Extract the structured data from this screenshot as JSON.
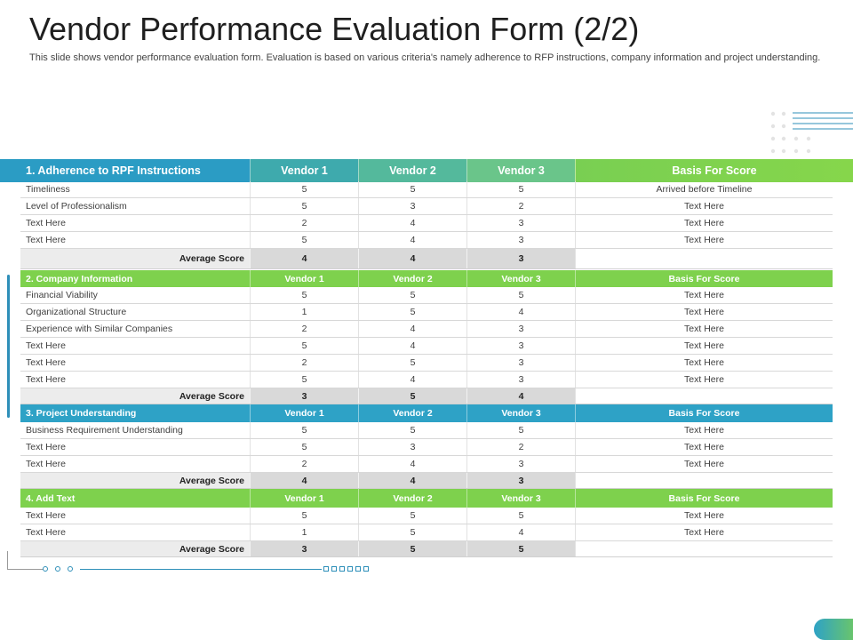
{
  "title": "Vendor Performance Evaluation Form (2/2)",
  "subtitle": "This slide shows vendor performance evaluation form. Evaluation is based on various criteria's namely adherence to RFP instructions, company information and project understanding.",
  "average_label": "Average Score",
  "colors": {
    "blue": "#2ea2c6",
    "green": "#7ed14d",
    "avg_gray": "#d9d9d9"
  },
  "sections": [
    {
      "header": [
        "1. Adherence to RPF Instructions",
        "Vendor 1",
        "Vendor 2",
        "Vendor 3",
        "Basis For Score"
      ],
      "header_color": "gradient",
      "rows": [
        [
          "Timeliness",
          "5",
          "5",
          "5",
          "Arrived before Timeline"
        ],
        [
          "Level of Professionalism",
          "5",
          "3",
          "2",
          "Text Here"
        ],
        [
          "Text Here",
          "2",
          "4",
          "3",
          "Text Here"
        ],
        [
          "Text Here",
          "5",
          "4",
          "3",
          "Text Here"
        ]
      ],
      "average": [
        "4",
        "4",
        "3"
      ]
    },
    {
      "header": [
        "2. Company Information",
        "Vendor 1",
        "Vendor 2",
        "Vendor 3",
        "Basis For Score"
      ],
      "header_color": "green",
      "rows": [
        [
          "Financial Viability",
          "5",
          "5",
          "5",
          "Text Here"
        ],
        [
          "Organizational Structure",
          "1",
          "5",
          "4",
          "Text Here"
        ],
        [
          "Experience with Similar Companies",
          "2",
          "4",
          "3",
          "Text Here"
        ],
        [
          "Text Here",
          "5",
          "4",
          "3",
          "Text Here"
        ],
        [
          "Text Here",
          "2",
          "5",
          "3",
          "Text Here"
        ],
        [
          "Text Here",
          "5",
          "4",
          "3",
          "Text Here"
        ]
      ],
      "average": [
        "3",
        "5",
        "4"
      ]
    },
    {
      "header": [
        "3. Project Understanding",
        "Vendor 1",
        "Vendor 2",
        "Vendor 3",
        "Basis For Score"
      ],
      "header_color": "blue",
      "rows": [
        [
          "Business Requirement Understanding",
          "5",
          "5",
          "5",
          "Text Here"
        ],
        [
          "Text Here",
          "5",
          "3",
          "2",
          "Text Here"
        ],
        [
          "Text Here",
          "2",
          "4",
          "3",
          "Text Here"
        ]
      ],
      "average": [
        "4",
        "4",
        "3"
      ]
    },
    {
      "header": [
        "4. Add Text",
        "Vendor 1",
        "Vendor 2",
        "Vendor 3",
        "Basis For Score"
      ],
      "header_color": "green",
      "rows": [
        [
          "Text Here",
          "5",
          "5",
          "5",
          "Text Here"
        ],
        [
          "Text Here",
          "1",
          "5",
          "4",
          "Text Here"
        ]
      ],
      "average": [
        "3",
        "5",
        "5"
      ]
    }
  ]
}
